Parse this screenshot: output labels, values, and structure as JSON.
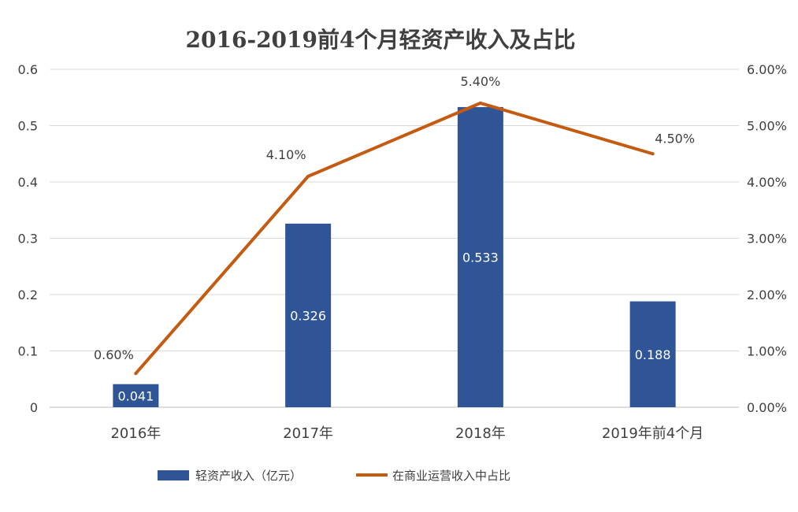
{
  "chart_data": {
    "type": "bar+line",
    "title": "2016-2019前4个月轻资产收入及占比",
    "categories": [
      "2016年",
      "2017年",
      "2018年",
      "2019年前4个月"
    ],
    "left_axis": {
      "range": [
        0,
        0.6
      ],
      "ticks": [
        0,
        0.1,
        0.2,
        0.3,
        0.4,
        0.5,
        0.6
      ],
      "tick_labels": [
        "0",
        "0.1",
        "0.2",
        "0.3",
        "0.4",
        "0.5",
        "0.6"
      ]
    },
    "right_axis": {
      "range": [
        0,
        6
      ],
      "tick_labels": [
        "0.00%",
        "1.00%",
        "2.00%",
        "3.00%",
        "4.00%",
        "5.00%",
        "6.00%"
      ]
    },
    "series": [
      {
        "name": "轻资产收入（亿元）",
        "type": "bar",
        "axis": "left",
        "color": "#2F5597",
        "values": [
          0.041,
          0.326,
          0.533,
          0.188
        ],
        "labels": [
          "0.041",
          "0.326",
          "0.533",
          "0.188"
        ]
      },
      {
        "name": "在商业运营收入中占比",
        "type": "line",
        "axis": "right",
        "color": "#C55A11",
        "values": [
          0.6,
          4.1,
          5.4,
          4.5
        ],
        "labels": [
          "0.60%",
          "4.10%",
          "5.40%",
          "4.50%"
        ]
      }
    ],
    "grid": true,
    "legend": "bottom"
  }
}
